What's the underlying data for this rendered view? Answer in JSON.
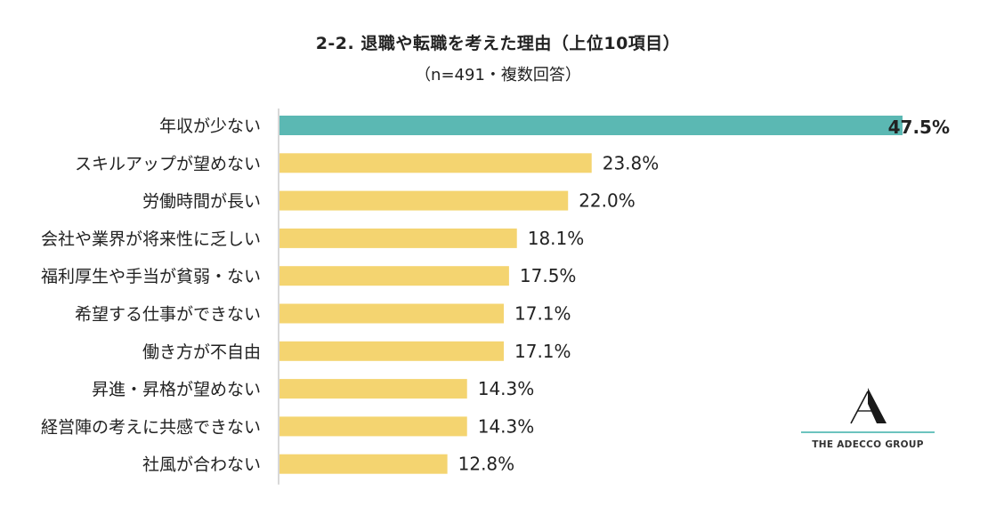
{
  "header": {
    "title": "2-2. 退職や転職を考えた理由（上位10項目）",
    "subtitle": "（n=491・複数回答）"
  },
  "logo": {
    "name": "THE ADECCO GROUP",
    "accent_color": "#6cc3bf"
  },
  "colors": {
    "highlight": "#5bb8b3",
    "bar": "#f4d470",
    "axis": "#bfbfbf"
  },
  "chart_data": {
    "type": "bar",
    "orientation": "horizontal",
    "title": "2-2. 退職や転職を考えた理由（上位10項目）",
    "subtitle": "（n=491・複数回答）",
    "categories": [
      "年収が少ない",
      "スキルアップが望めない",
      "労働時間が長い",
      "会社や業界が将来性に乏しい",
      "福利厚生や手当が貧弱・ない",
      "希望する仕事ができない",
      "働き方が不自由",
      "昇進・昇格が望めない",
      "経営陣の考えに共感できない",
      "社風が合わない"
    ],
    "values": [
      47.5,
      23.8,
      22.0,
      18.1,
      17.5,
      17.1,
      17.1,
      14.3,
      14.3,
      12.8
    ],
    "value_labels": [
      "47.5%",
      "23.8%",
      "22.0%",
      "18.1%",
      "17.5%",
      "17.1%",
      "17.1%",
      "14.3%",
      "14.3%",
      "12.8%"
    ],
    "unit": "%",
    "highlight_index": 0,
    "xlim": [
      0,
      47.5
    ],
    "grid": false,
    "legend": "none"
  }
}
